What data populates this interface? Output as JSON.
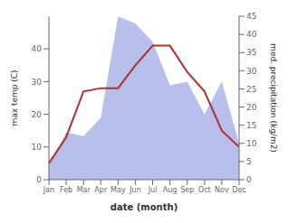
{
  "chart_data": {
    "type": "line",
    "categories": [
      "Jan",
      "Feb",
      "Mar",
      "Apr",
      "May",
      "Jun",
      "Jul",
      "Aug",
      "Sep",
      "Oct",
      "Nov",
      "Dec"
    ],
    "series": [
      {
        "type": "area",
        "axis": "y2",
        "color": "#aab4e8",
        "values": [
          4,
          13,
          12,
          17,
          45,
          43,
          38,
          26,
          27,
          18,
          27,
          10
        ]
      },
      {
        "type": "line",
        "color": "#b03030",
        "values": [
          5,
          13,
          27,
          28,
          28,
          35,
          41,
          41,
          33,
          27,
          15,
          10
        ]
      }
    ],
    "xlabel": "date (month)",
    "ylabel": "max temp (C)",
    "y2label": "med. precipitation (kg/m2)",
    "ylim": [
      0,
      50
    ],
    "yticks": [
      0,
      10,
      20,
      30,
      40
    ],
    "y2lim": [
      0,
      45
    ],
    "y2ticks": [
      0,
      5,
      10,
      15,
      20,
      25,
      30,
      35,
      40,
      45
    ]
  }
}
